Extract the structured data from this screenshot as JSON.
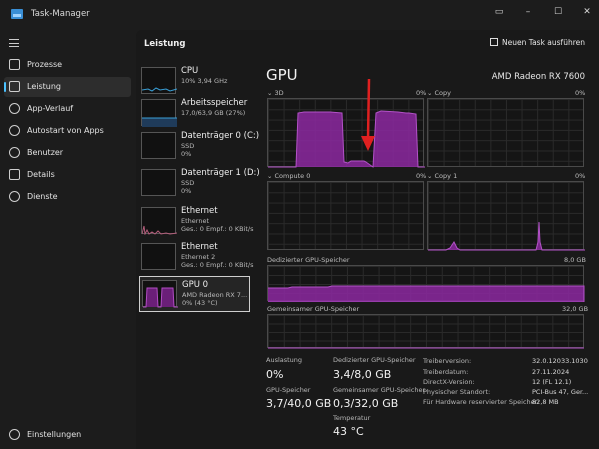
{
  "window": {
    "title": "Task-Manager"
  },
  "sidebar": {
    "items": [
      {
        "label": "Prozesse",
        "icon": "processes-icon"
      },
      {
        "label": "Leistung",
        "icon": "performance-icon",
        "active": true
      },
      {
        "label": "App-Verlauf",
        "icon": "history-icon"
      },
      {
        "label": "Autostart von Apps",
        "icon": "startup-icon"
      },
      {
        "label": "Benutzer",
        "icon": "users-icon"
      },
      {
        "label": "Details",
        "icon": "details-icon"
      },
      {
        "label": "Dienste",
        "icon": "services-icon"
      }
    ],
    "settings_label": "Einstellungen"
  },
  "header": {
    "title": "Leistung",
    "run_task": "Neuen Task ausführen"
  },
  "devices": [
    {
      "name": "CPU",
      "line1": "10% 3,94 GHz"
    },
    {
      "name": "Arbeitsspeicher",
      "line1": "17,0/63,9 GB (27%)"
    },
    {
      "name": "Datenträger 0 (C:)",
      "line1": "SSD",
      "line2": "0%"
    },
    {
      "name": "Datenträger 1 (D:)",
      "line1": "SSD",
      "line2": "0%"
    },
    {
      "name": "Ethernet",
      "line1": "Ethernet",
      "line2": "Ges.: 0 Empf.: 0 KBit/s"
    },
    {
      "name": "Ethernet",
      "line1": "Ethernet 2",
      "line2": "Ges.: 0 Empf.: 0 KBit/s"
    },
    {
      "name": "GPU 0",
      "line1": "AMD Radeon RX 7...",
      "line2": "0% (43 °C)"
    }
  ],
  "gpu": {
    "title": "GPU",
    "model": "AMD Radeon RX 7600",
    "engines": [
      {
        "name": "3D",
        "pct": "0%"
      },
      {
        "name": "Copy",
        "pct": "0%"
      },
      {
        "name": "Compute 0",
        "pct": "0%"
      },
      {
        "name": "Copy 1",
        "pct": "0%"
      }
    ],
    "dedicated_label": "Dedizierter GPU-Speicher",
    "dedicated_max": "8,0 GB",
    "shared_label": "Gemeinsamer GPU-Speicher",
    "shared_max": "32,0 GB"
  },
  "stats": {
    "auslastung_label": "Auslastung",
    "auslastung": "0%",
    "ded_label": "Dedizierter GPU-Speicher",
    "ded": "3,4/8,0 GB",
    "gpumem_label": "GPU-Speicher",
    "gpumem": "3,7/40,0 GB",
    "shared_label": "Gemeinsamer GPU-Speicher",
    "shared": "0,3/32,0 GB",
    "temp_label": "Temperatur",
    "temp": "43 °C"
  },
  "info": [
    {
      "k": "Treiberversion:",
      "v": "32.0.12033.1030"
    },
    {
      "k": "Treiberdatum:",
      "v": "27.11.2024"
    },
    {
      "k": "DirectX-Version:",
      "v": "12 (FL 12.1)"
    },
    {
      "k": "Physischer Standort:",
      "v": "PCI-Bus 47, Ger..."
    },
    {
      "k": "Für Hardware reservierter Speicher:",
      "v": "82,8 MB"
    }
  ],
  "colors": {
    "accent": "#4cc2ff",
    "gpu": "#9b30a8",
    "annotation_arrow": "#e02020"
  }
}
